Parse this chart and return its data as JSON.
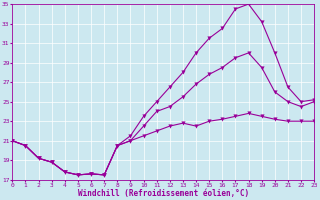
{
  "xlabel": "Windchill (Refroidissement éolien,°C)",
  "bg_color": "#cce8f0",
  "line_color": "#990099",
  "xlim": [
    0,
    23
  ],
  "ylim": [
    17,
    35
  ],
  "yticks": [
    17,
    19,
    21,
    23,
    25,
    27,
    29,
    31,
    33,
    35
  ],
  "xticks": [
    0,
    1,
    2,
    3,
    4,
    5,
    6,
    7,
    8,
    9,
    10,
    11,
    12,
    13,
    14,
    15,
    16,
    17,
    18,
    19,
    20,
    21,
    22,
    23
  ],
  "curve_top_x": [
    0,
    1,
    2,
    3,
    4,
    5,
    6,
    7,
    8,
    9,
    10,
    11,
    12,
    13,
    14,
    15,
    16,
    17,
    18,
    19,
    20,
    21,
    22,
    23
  ],
  "curve_top_y": [
    21,
    20.5,
    19.2,
    18.8,
    17.8,
    17.5,
    17.6,
    17.5,
    20.5,
    21.5,
    23.5,
    25.0,
    26.5,
    28.0,
    30.0,
    31.5,
    32.5,
    34.5,
    35.0,
    33.2,
    30.0,
    26.5,
    25.0,
    25.2
  ],
  "curve_mid_x": [
    0,
    1,
    2,
    3,
    4,
    5,
    6,
    7,
    8,
    9,
    10,
    11,
    12,
    13,
    14,
    15,
    16,
    17,
    18,
    19,
    20,
    21,
    22,
    23
  ],
  "curve_mid_y": [
    21,
    20.5,
    19.2,
    18.8,
    17.8,
    17.5,
    17.6,
    17.5,
    20.5,
    21.0,
    22.5,
    24.0,
    24.5,
    25.5,
    26.8,
    27.8,
    28.5,
    29.5,
    30.0,
    28.5,
    26.0,
    25.0,
    24.5,
    25.0
  ],
  "curve_bot_x": [
    0,
    1,
    2,
    3,
    4,
    5,
    6,
    7,
    8,
    9,
    10,
    11,
    12,
    13,
    14,
    15,
    16,
    17,
    18,
    19,
    20,
    21,
    22,
    23
  ],
  "curve_bot_y": [
    21,
    20.5,
    19.2,
    18.8,
    17.8,
    17.5,
    17.6,
    17.5,
    20.5,
    21.0,
    21.5,
    22.0,
    22.5,
    22.8,
    22.5,
    23.0,
    23.2,
    23.5,
    23.8,
    23.5,
    23.2,
    23.0,
    23.0,
    23.0
  ],
  "marker": "v",
  "markersize": 3,
  "linewidth": 0.8
}
